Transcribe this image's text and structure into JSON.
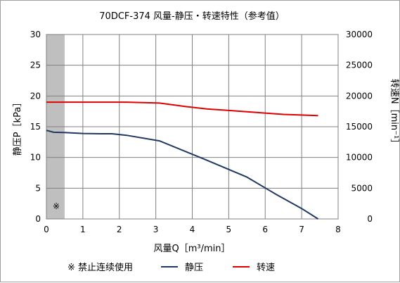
{
  "chart_data": {
    "type": "line",
    "title": "70DCF-374 风量-静压・转速特性（参考值）",
    "xlabel": "风量Q［m³/min］",
    "ylabel_left": "静压P［kPa］",
    "ylabel_right": "转速N［min⁻¹］",
    "xlim": [
      0,
      8
    ],
    "ylim_left": [
      0,
      30
    ],
    "ylim_right": [
      0,
      30000
    ],
    "x_ticks": [
      "0",
      "1",
      "2",
      "3",
      "4",
      "5",
      "6",
      "7",
      "8"
    ],
    "y_left_ticks": [
      "0",
      "5",
      "10",
      "15",
      "20",
      "25",
      "30"
    ],
    "y_right_ticks": [
      "0",
      "5000",
      "10000",
      "15000",
      "20000",
      "25000",
      "30000"
    ],
    "grid": true,
    "legend_position": "bottom",
    "shaded_region": {
      "x_range": [
        0,
        0.5
      ],
      "label": "※",
      "legend": "※ 禁止连续使用",
      "color": "#bfbfbf"
    },
    "series": [
      {
        "name": "静压",
        "axis": "left",
        "color": "#1f3864",
        "x": [
          0,
          0.2,
          0.5,
          1.0,
          1.5,
          1.8,
          2.2,
          3.1,
          4.3,
          5.5,
          6.3,
          7.0,
          7.45
        ],
        "y": [
          14.4,
          14.1,
          14.05,
          13.9,
          13.85,
          13.85,
          13.6,
          12.7,
          9.8,
          6.8,
          4.0,
          1.7,
          0.0
        ]
      },
      {
        "name": "转速",
        "axis": "right",
        "color": "#e00000",
        "x": [
          0,
          1.0,
          2.2,
          3.1,
          3.8,
          4.4,
          5.0,
          5.8,
          6.5,
          7.0,
          7.45
        ],
        "y": [
          19000,
          19000,
          19000,
          18850,
          18300,
          17900,
          17650,
          17300,
          17000,
          16900,
          16800
        ]
      }
    ]
  }
}
